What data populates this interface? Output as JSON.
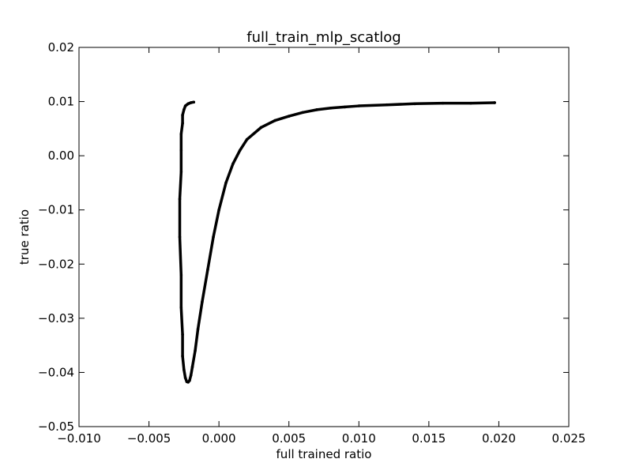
{
  "chart_data": {
    "type": "line",
    "title": "full_train_mlp_scatlog",
    "xlabel": "full trained ratio",
    "ylabel": "true ratio",
    "xlim": [
      -0.01,
      0.025
    ],
    "ylim": [
      -0.05,
      0.02
    ],
    "xticks": [
      -0.01,
      -0.005,
      0.0,
      0.005,
      0.01,
      0.015,
      0.02,
      0.025
    ],
    "xtick_labels": [
      "−0.010",
      "−0.005",
      "0.000",
      "0.005",
      "0.010",
      "0.015",
      "0.020",
      "0.025"
    ],
    "yticks": [
      -0.05,
      -0.04,
      -0.03,
      -0.02,
      -0.01,
      0.0,
      0.01,
      0.02
    ],
    "ytick_labels": [
      "−0.05",
      "−0.04",
      "−0.03",
      "−0.02",
      "−0.01",
      "0.00",
      "0.01",
      "0.02"
    ],
    "grid": false,
    "series": [
      {
        "color": "#000000",
        "points": [
          [
            -0.0018,
            0.0099
          ],
          [
            -0.002,
            0.0098
          ],
          [
            -0.0022,
            0.0096
          ],
          [
            -0.0024,
            0.0092
          ],
          [
            -0.0025,
            0.0085
          ],
          [
            -0.0026,
            0.0075
          ],
          [
            -0.0026,
            0.006
          ],
          [
            -0.0027,
            0.004
          ],
          [
            -0.0027,
            0.001
          ],
          [
            -0.0027,
            -0.003
          ],
          [
            -0.0028,
            -0.008
          ],
          [
            -0.0028,
            -0.015
          ],
          [
            -0.0027,
            -0.022
          ],
          [
            -0.0027,
            -0.028
          ],
          [
            -0.0026,
            -0.033
          ],
          [
            -0.0026,
            -0.037
          ],
          [
            -0.0025,
            -0.0395
          ],
          [
            -0.0024,
            -0.041
          ],
          [
            -0.0023,
            -0.0417
          ],
          [
            -0.0022,
            -0.0418
          ],
          [
            -0.0021,
            -0.0415
          ],
          [
            -0.002,
            -0.0405
          ],
          [
            -0.0019,
            -0.039
          ],
          [
            -0.0017,
            -0.036
          ],
          [
            -0.0015,
            -0.032
          ],
          [
            -0.0012,
            -0.027
          ],
          [
            -0.0008,
            -0.021
          ],
          [
            -0.0004,
            -0.015
          ],
          [
            0.0,
            -0.01
          ],
          [
            0.0005,
            -0.005
          ],
          [
            0.001,
            -0.0015
          ],
          [
            0.0015,
            0.001
          ],
          [
            0.002,
            0.003
          ],
          [
            0.003,
            0.0052
          ],
          [
            0.004,
            0.0065
          ],
          [
            0.005,
            0.0073
          ],
          [
            0.006,
            0.008
          ],
          [
            0.007,
            0.0085
          ],
          [
            0.008,
            0.0088
          ],
          [
            0.009,
            0.009
          ],
          [
            0.01,
            0.0092
          ],
          [
            0.012,
            0.0094
          ],
          [
            0.014,
            0.0096
          ],
          [
            0.016,
            0.0097
          ],
          [
            0.018,
            0.0097
          ],
          [
            0.0197,
            0.0098
          ]
        ]
      }
    ]
  }
}
